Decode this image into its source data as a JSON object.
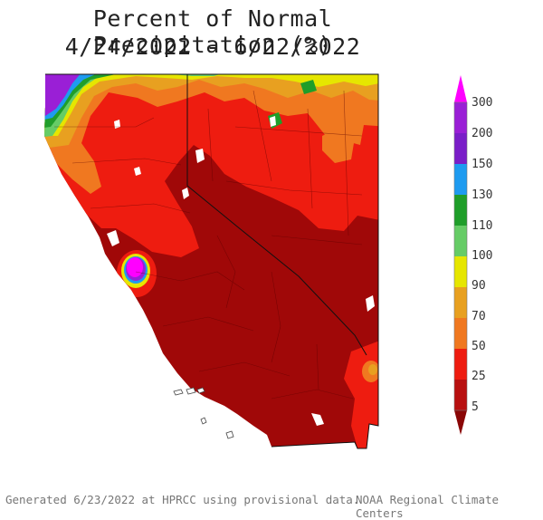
{
  "title": {
    "line1": "Percent of Normal Precipitation (%)",
    "line2": "4/24/2022 - 6/22/2022"
  },
  "legend": {
    "labels": [
      "300",
      "200",
      "150",
      "130",
      "110",
      "100",
      "90",
      "70",
      "50",
      "25",
      "5"
    ],
    "colors": {
      "300": "#ff00ff",
      "200": "#9a1fd6",
      "150": "#1e9bf0",
      "130": "#1ea0a0",
      "110": "#1f9e2a",
      "100": "#66cc66",
      "90": "#e6e600",
      "70": "#e8a020",
      "50": "#f07820",
      "25": "#ee1c10",
      "5": "#a00808"
    }
  },
  "footer": {
    "left": "Generated 6/23/2022 at HPRCC using provisional data.",
    "right": "NOAA Regional Climate Centers"
  },
  "map": {
    "regions": [
      "California",
      "Nevada"
    ],
    "palette": {
      "lake": "#ffffff",
      "border": "#222222",
      "county": "#5a0000"
    }
  }
}
